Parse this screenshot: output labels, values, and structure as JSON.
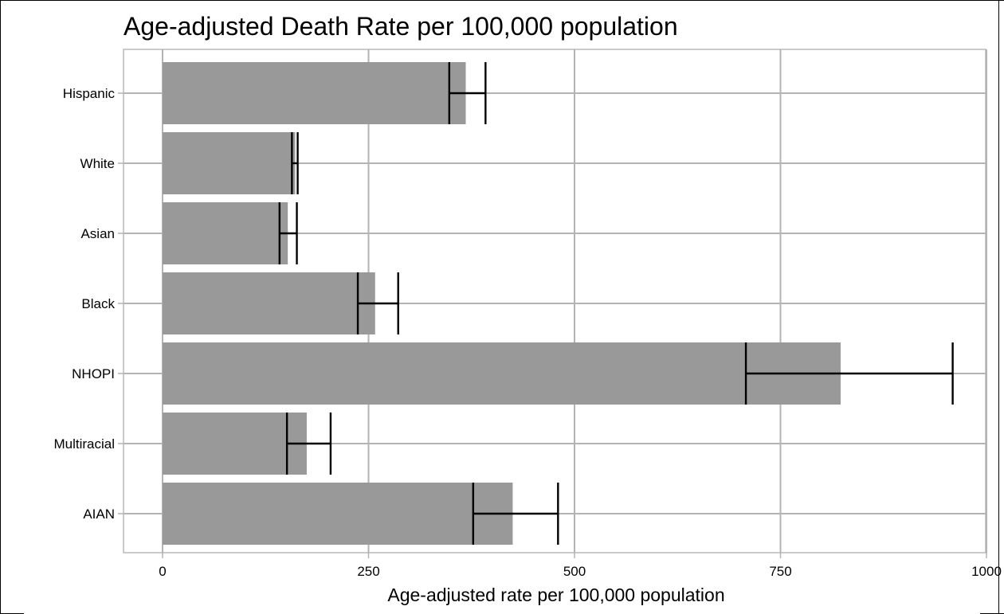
{
  "chart_data": {
    "type": "bar",
    "orientation": "horizontal",
    "title": "Age-adjusted Death Rate per 100,000 population",
    "xlabel": "Age-adjusted rate per 100,000 population",
    "ylabel": "",
    "xlim": [
      -95,
      1005
    ],
    "x_ticks": [
      0,
      250,
      500,
      750,
      1000
    ],
    "x_tick_labels": [
      "0",
      "250",
      "500",
      "750",
      "1000"
    ],
    "grid": true,
    "colors": {
      "bar": "#999999",
      "grid": "#b3b3b3",
      "error_bar": "#000000"
    },
    "categories": [
      "Hispanic",
      "White",
      "Asian",
      "Black",
      "NHOPI",
      "Multiracial",
      "AIAN"
    ],
    "values": [
      368,
      161,
      152,
      258,
      823,
      175,
      425
    ],
    "error_low": [
      348,
      157,
      142,
      237,
      708,
      151,
      377
    ],
    "error_high": [
      392,
      164,
      163,
      286,
      959,
      204,
      480
    ]
  }
}
